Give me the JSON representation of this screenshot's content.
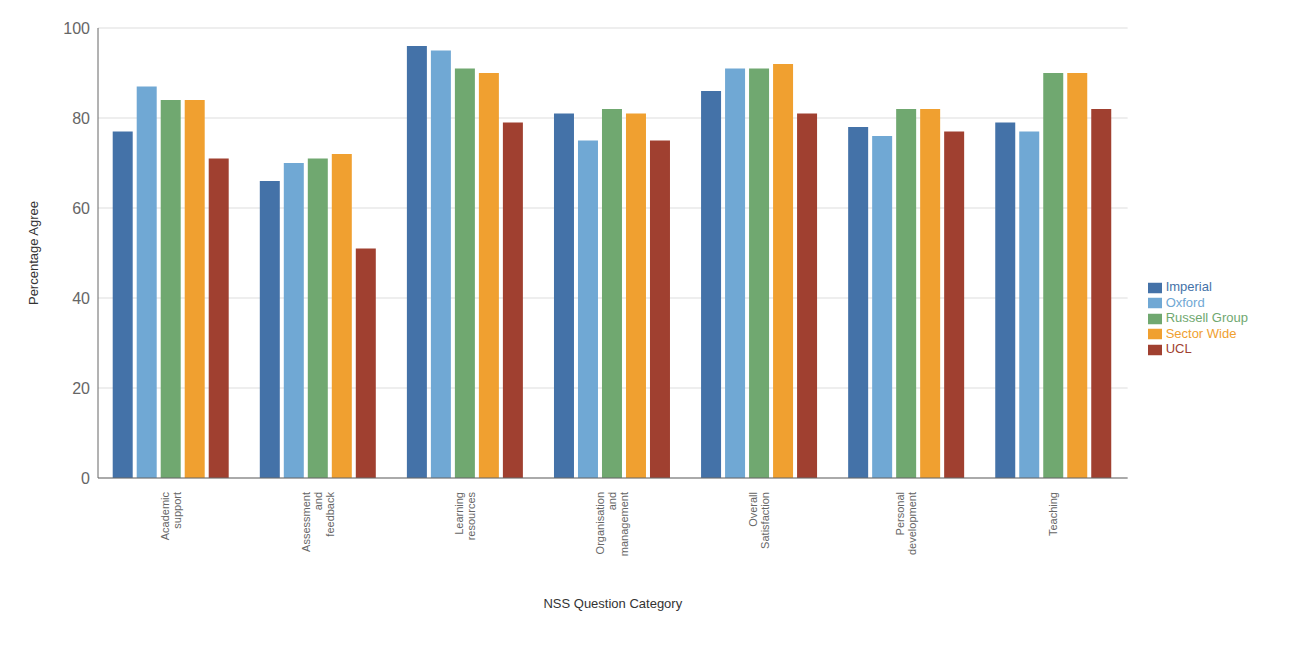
{
  "chart_data": {
    "type": "bar",
    "categories": [
      "Academic\nsupport",
      "Assessment\nand\nfeedback",
      "Learning\nresources",
      "Organisation\nand\nmanagement",
      "Overall\nSatisfaction",
      "Personal\ndevelopment",
      "Teaching"
    ],
    "series": [
      {
        "name": "Imperial",
        "color": "#4472a8",
        "values": [
          77,
          66,
          96,
          81,
          86,
          78,
          79
        ]
      },
      {
        "name": "Oxford",
        "color": "#70a8d4",
        "values": [
          87,
          70,
          95,
          75,
          91,
          76,
          77
        ]
      },
      {
        "name": "Russell Group",
        "color": "#70a870",
        "values": [
          84,
          71,
          91,
          82,
          91,
          82,
          90
        ]
      },
      {
        "name": "Sector Wide",
        "color": "#f0a030",
        "values": [
          84,
          72,
          90,
          81,
          92,
          82,
          90
        ]
      },
      {
        "name": "UCL",
        "color": "#a04030",
        "values": [
          71,
          51,
          79,
          75,
          81,
          77,
          82
        ]
      }
    ],
    "xlabel": "NSS Question Category",
    "ylabel": "Percentage Agree",
    "ylim": [
      0,
      100
    ],
    "yticks": [
      0,
      20,
      40,
      60,
      80,
      100
    ],
    "grid": true,
    "legend": "right"
  }
}
